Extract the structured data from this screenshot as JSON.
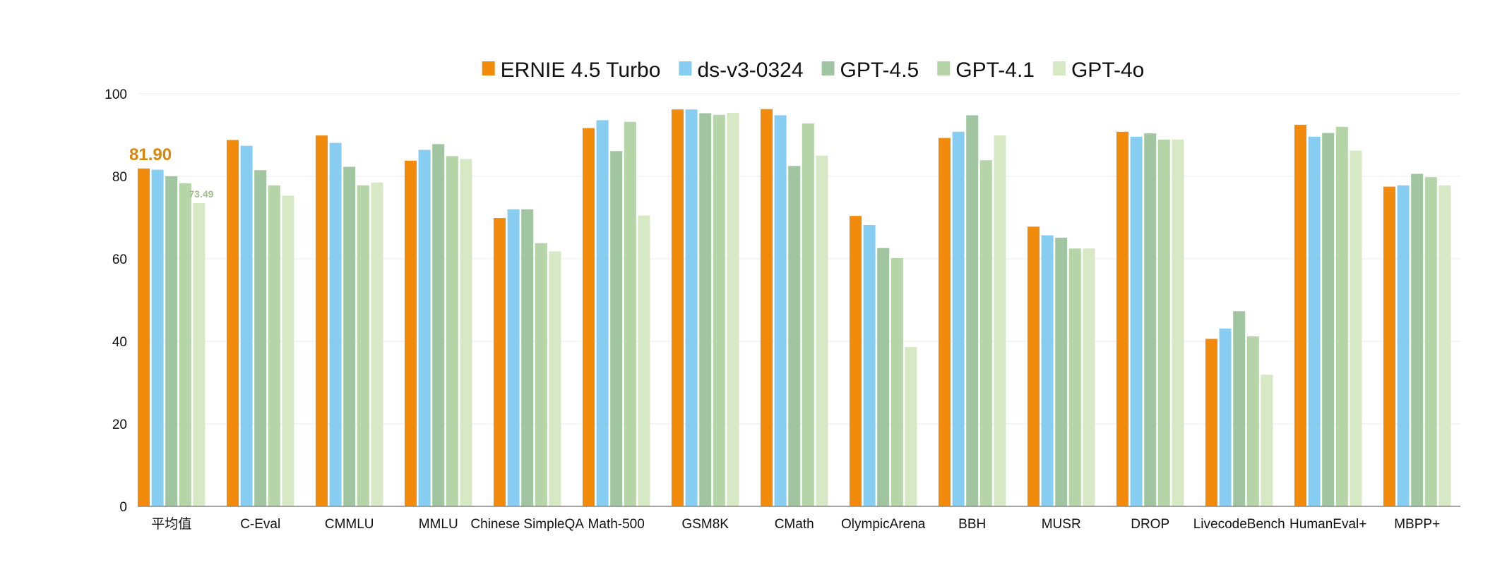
{
  "chart_data": {
    "type": "bar",
    "title": "",
    "xlabel": "",
    "ylabel": "",
    "ylim": [
      0,
      100
    ],
    "yticks": [
      0,
      20,
      40,
      60,
      80,
      100
    ],
    "grid": true,
    "legend_position": "top-center",
    "categories": [
      "平均值",
      "C-Eval",
      "CMMLU",
      "MMLU",
      "Chinese SimpleQA",
      "Math-500",
      "GSM8K",
      "CMath",
      "OlympicArena",
      "BBH",
      "MUSR",
      "DROP",
      "LivecodeBench",
      "HumanEval+",
      "MBPP+"
    ],
    "series": [
      {
        "name": "ERNIE 4.5 Turbo",
        "color": "#F28B0C",
        "values": [
          81.9,
          88.8,
          89.9,
          83.8,
          69.9,
          91.7,
          96.2,
          96.3,
          70.4,
          89.3,
          67.8,
          90.8,
          40.6,
          92.5,
          77.5
        ]
      },
      {
        "name": "ds-v3-0324",
        "color": "#86CDF1",
        "values": [
          81.6,
          87.4,
          88.1,
          86.4,
          72.0,
          93.6,
          96.2,
          94.8,
          68.2,
          90.8,
          65.7,
          89.6,
          43.1,
          89.6,
          77.8
        ]
      },
      {
        "name": "GPT-4.5",
        "color": "#A0C5A0",
        "values": [
          80.0,
          81.5,
          82.3,
          87.8,
          72.0,
          86.1,
          95.3,
          82.5,
          62.6,
          94.8,
          65.1,
          90.4,
          47.3,
          90.5,
          80.6
        ]
      },
      {
        "name": "GPT-4.1",
        "color": "#B5D5A8",
        "values": [
          78.3,
          77.8,
          77.8,
          84.9,
          63.8,
          93.2,
          94.9,
          92.8,
          60.2,
          83.9,
          62.5,
          88.9,
          41.2,
          92.0,
          79.8
        ]
      },
      {
        "name": "GPT-4o",
        "color": "#D6E8C4",
        "values": [
          73.49,
          75.3,
          78.5,
          84.2,
          61.8,
          70.5,
          95.4,
          85.0,
          38.6,
          89.9,
          62.5,
          88.9,
          31.9,
          86.2,
          77.8
        ]
      }
    ],
    "annotations": [
      {
        "text": "81.90",
        "category": "平均值",
        "series": "ERNIE 4.5 Turbo",
        "color": "#D9860F"
      },
      {
        "text": "73.49",
        "category": "平均值",
        "series": "GPT-4o",
        "color": "#9FBF8A"
      }
    ]
  }
}
